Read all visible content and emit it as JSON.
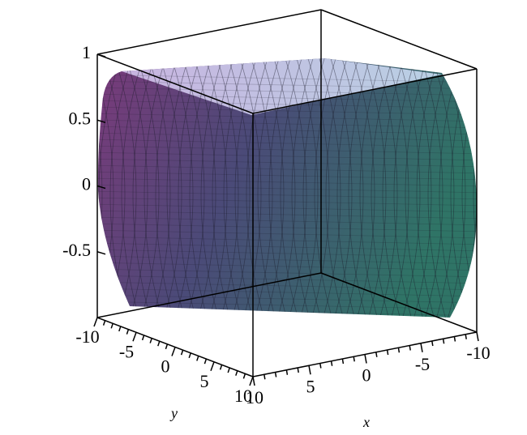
{
  "chart_data": {
    "type": "surface3d",
    "x_label": "x",
    "y_label": "y",
    "xlim": [
      -10,
      10
    ],
    "ylim": [
      -10,
      10
    ],
    "zlim": [
      -1,
      1
    ],
    "xticks": [
      10,
      5,
      0,
      -5,
      -10
    ],
    "yticks": [
      -10,
      -5,
      0,
      5,
      10
    ],
    "zticks": [
      1,
      0.5,
      0,
      -0.5
    ]
  }
}
